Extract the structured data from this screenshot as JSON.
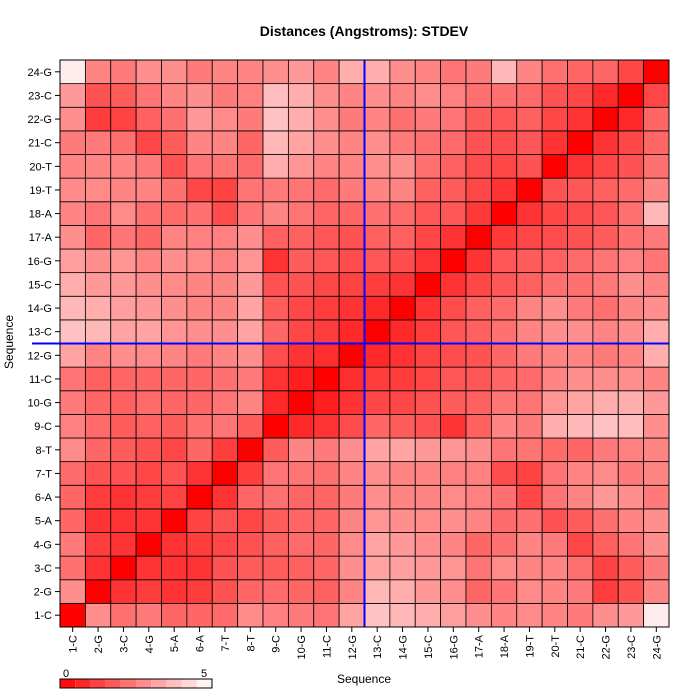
{
  "chart_data": {
    "type": "heatmap",
    "title": "Distances (Angstroms):  STDEV",
    "xlabel": "Sequence",
    "ylabel": "Sequence",
    "labels": [
      "1-C",
      "2-G",
      "3-C",
      "4-G",
      "5-A",
      "6-A",
      "7-T",
      "8-T",
      "9-C",
      "10-G",
      "11-C",
      "12-G",
      "13-C",
      "14-G",
      "15-C",
      "16-G",
      "17-A",
      "18-A",
      "19-T",
      "20-T",
      "21-C",
      "22-G",
      "23-C",
      "24-G"
    ],
    "color_scale": {
      "min": 0,
      "max": 5,
      "low_color": "#ff0000",
      "high_color": "#ffffff",
      "tick_labels": [
        "0",
        "5"
      ]
    },
    "highlight": {
      "row": "12-G",
      "col": "12-G",
      "color": "#0000ff"
    },
    "values": [
      [
        0.0,
        2.8,
        2.2,
        2.4,
        2.0,
        2.0,
        2.1,
        2.7,
        2.5,
        2.4,
        2.3,
        3.2,
        3.8,
        3.6,
        3.4,
        3.1,
        2.8,
        2.6,
        2.7,
        2.6,
        2.4,
        2.8,
        3.0,
        4.6
      ],
      [
        2.8,
        0.0,
        1.0,
        1.2,
        1.0,
        1.2,
        1.6,
        2.0,
        2.1,
        2.0,
        1.9,
        2.6,
        3.6,
        3.4,
        3.0,
        2.8,
        2.0,
        2.3,
        2.7,
        2.6,
        2.4,
        1.2,
        1.6,
        2.6
      ],
      [
        2.2,
        1.0,
        0.0,
        1.0,
        1.0,
        1.0,
        1.6,
        1.8,
        1.8,
        1.9,
        2.0,
        2.8,
        3.2,
        3.1,
        3.0,
        2.9,
        2.3,
        2.7,
        2.6,
        2.6,
        2.2,
        1.3,
        1.8,
        2.4
      ],
      [
        2.4,
        1.2,
        1.0,
        0.0,
        1.0,
        1.2,
        1.4,
        1.6,
        1.9,
        2.1,
        2.0,
        2.7,
        3.2,
        3.0,
        2.8,
        2.6,
        2.0,
        2.2,
        2.6,
        2.4,
        1.4,
        1.9,
        2.3,
        2.8
      ],
      [
        2.0,
        1.0,
        1.0,
        1.0,
        0.0,
        1.3,
        1.6,
        1.4,
        1.8,
        2.0,
        2.0,
        2.6,
        2.9,
        2.8,
        2.7,
        2.8,
        2.6,
        2.1,
        2.2,
        1.6,
        1.8,
        2.2,
        2.6,
        2.8
      ],
      [
        2.0,
        1.2,
        1.0,
        1.2,
        1.3,
        0.0,
        1.0,
        2.0,
        2.2,
        2.0,
        2.0,
        2.4,
        2.8,
        2.6,
        2.6,
        2.7,
        2.5,
        2.2,
        1.4,
        2.3,
        2.6,
        3.0,
        2.8,
        2.4
      ],
      [
        2.1,
        1.6,
        1.6,
        1.4,
        1.6,
        1.0,
        0.0,
        1.2,
        2.3,
        2.3,
        2.2,
        2.6,
        2.8,
        2.6,
        2.6,
        2.5,
        2.5,
        1.5,
        1.3,
        2.3,
        2.6,
        2.7,
        2.4,
        2.6
      ],
      [
        2.7,
        2.0,
        1.8,
        1.6,
        1.4,
        2.0,
        1.2,
        0.0,
        1.8,
        2.6,
        2.4,
        2.8,
        3.2,
        3.2,
        3.0,
        2.9,
        2.8,
        2.3,
        2.3,
        2.1,
        2.0,
        2.4,
        2.5,
        2.6
      ],
      [
        2.5,
        2.1,
        1.8,
        1.9,
        1.8,
        2.2,
        2.3,
        1.8,
        0.0,
        0.8,
        1.0,
        1.5,
        2.0,
        1.8,
        1.6,
        1.0,
        1.9,
        2.6,
        2.4,
        3.4,
        3.6,
        3.8,
        3.7,
        2.8
      ],
      [
        2.4,
        2.0,
        1.9,
        2.1,
        2.0,
        2.0,
        2.3,
        2.6,
        0.8,
        0.0,
        0.6,
        1.0,
        1.4,
        1.4,
        1.6,
        1.8,
        1.9,
        2.3,
        2.3,
        2.9,
        3.2,
        3.4,
        3.4,
        3.0
      ],
      [
        2.3,
        1.9,
        2.0,
        2.0,
        2.0,
        2.0,
        2.2,
        2.4,
        1.0,
        0.6,
        0.0,
        0.9,
        1.2,
        1.2,
        1.4,
        1.7,
        1.7,
        2.0,
        2.1,
        2.6,
        2.8,
        2.8,
        2.8,
        2.6
      ],
      [
        3.2,
        2.6,
        2.8,
        2.7,
        2.6,
        2.4,
        2.6,
        2.8,
        1.5,
        1.0,
        0.9,
        0.0,
        0.8,
        1.0,
        1.3,
        1.5,
        1.6,
        2.0,
        2.4,
        2.6,
        2.6,
        2.4,
        2.6,
        3.4
      ],
      [
        3.8,
        3.6,
        3.2,
        3.2,
        2.9,
        2.8,
        2.8,
        3.2,
        2.0,
        1.4,
        1.2,
        0.8,
        0.0,
        0.8,
        1.2,
        1.7,
        1.9,
        2.2,
        2.6,
        2.8,
        2.8,
        2.6,
        2.8,
        3.4
      ],
      [
        3.6,
        3.4,
        3.1,
        3.0,
        2.8,
        2.6,
        2.6,
        3.2,
        1.8,
        1.4,
        1.2,
        1.0,
        0.8,
        0.0,
        1.0,
        1.5,
        1.9,
        2.1,
        2.6,
        2.8,
        2.4,
        2.2,
        2.6,
        2.8
      ],
      [
        3.4,
        3.0,
        3.0,
        2.8,
        2.7,
        2.6,
        2.6,
        3.0,
        1.6,
        1.6,
        1.4,
        1.3,
        1.2,
        1.0,
        0.0,
        1.0,
        1.4,
        1.7,
        1.9,
        2.2,
        2.2,
        2.4,
        2.8,
        2.6
      ],
      [
        3.1,
        2.8,
        2.9,
        2.6,
        2.8,
        2.7,
        2.5,
        2.9,
        1.0,
        1.8,
        1.7,
        1.5,
        1.7,
        1.5,
        1.0,
        0.0,
        1.0,
        1.7,
        1.8,
        1.9,
        2.1,
        2.3,
        2.5,
        2.3
      ],
      [
        2.8,
        2.0,
        2.3,
        2.0,
        2.6,
        2.5,
        2.5,
        2.8,
        1.9,
        1.9,
        1.7,
        1.6,
        1.9,
        1.9,
        1.4,
        1.0,
        0.0,
        1.1,
        1.4,
        1.5,
        1.6,
        1.8,
        2.2,
        2.4
      ],
      [
        2.6,
        2.3,
        2.7,
        2.2,
        2.1,
        2.2,
        1.5,
        2.3,
        2.6,
        2.3,
        2.0,
        2.0,
        2.2,
        2.1,
        1.7,
        1.7,
        1.1,
        0.0,
        1.0,
        1.4,
        1.5,
        1.7,
        2.2,
        3.6
      ],
      [
        2.7,
        2.7,
        2.6,
        2.6,
        2.2,
        1.4,
        1.3,
        2.3,
        2.4,
        2.3,
        2.1,
        2.4,
        2.6,
        2.6,
        1.9,
        1.8,
        1.4,
        1.0,
        0.0,
        1.6,
        1.7,
        1.9,
        2.1,
        2.6
      ],
      [
        2.6,
        2.6,
        2.6,
        2.4,
        1.6,
        2.3,
        2.3,
        2.1,
        3.4,
        2.9,
        2.6,
        2.6,
        2.8,
        2.8,
        2.2,
        1.9,
        1.5,
        1.4,
        1.6,
        0.0,
        1.0,
        1.4,
        1.6,
        2.2
      ],
      [
        2.4,
        2.4,
        2.2,
        1.4,
        1.8,
        2.6,
        2.6,
        2.0,
        3.6,
        3.2,
        2.8,
        2.6,
        2.8,
        2.4,
        2.2,
        2.1,
        1.6,
        1.5,
        1.7,
        1.0,
        0.0,
        1.0,
        1.4,
        2.0
      ],
      [
        2.8,
        1.2,
        1.3,
        1.9,
        2.2,
        3.0,
        2.7,
        2.4,
        3.8,
        3.4,
        2.8,
        2.4,
        2.6,
        2.2,
        2.4,
        2.3,
        1.8,
        1.7,
        1.9,
        1.4,
        1.0,
        0.0,
        0.8,
        2.0
      ],
      [
        3.0,
        1.6,
        1.8,
        2.3,
        2.6,
        2.8,
        2.4,
        2.5,
        3.7,
        3.4,
        2.8,
        2.6,
        2.8,
        2.6,
        2.8,
        2.5,
        2.2,
        2.2,
        2.1,
        1.6,
        1.4,
        0.8,
        0.0,
        1.4
      ],
      [
        4.6,
        2.6,
        2.4,
        2.8,
        2.8,
        2.4,
        2.6,
        2.6,
        2.8,
        3.0,
        2.6,
        3.4,
        3.4,
        2.8,
        2.6,
        2.3,
        2.4,
        3.6,
        2.6,
        2.2,
        2.0,
        2.0,
        1.4,
        0.0
      ]
    ]
  }
}
